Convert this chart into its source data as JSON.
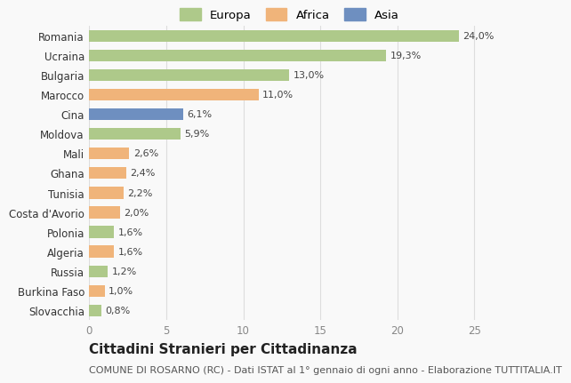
{
  "categories": [
    "Romania",
    "Ucraina",
    "Bulgaria",
    "Marocco",
    "Cina",
    "Moldova",
    "Mali",
    "Ghana",
    "Tunisia",
    "Costa d'Avorio",
    "Polonia",
    "Algeria",
    "Russia",
    "Burkina Faso",
    "Slovacchia"
  ],
  "values": [
    24.0,
    19.3,
    13.0,
    11.0,
    6.1,
    5.9,
    2.6,
    2.4,
    2.2,
    2.0,
    1.6,
    1.6,
    1.2,
    1.0,
    0.8
  ],
  "labels": [
    "24,0%",
    "19,3%",
    "13,0%",
    "11,0%",
    "6,1%",
    "5,9%",
    "2,6%",
    "2,4%",
    "2,2%",
    "2,0%",
    "1,6%",
    "1,6%",
    "1,2%",
    "1,0%",
    "0,8%"
  ],
  "continents": [
    "Europa",
    "Europa",
    "Europa",
    "Africa",
    "Asia",
    "Europa",
    "Africa",
    "Africa",
    "Africa",
    "Africa",
    "Europa",
    "Africa",
    "Europa",
    "Africa",
    "Europa"
  ],
  "colors": {
    "Europa": "#aec98a",
    "Africa": "#f0b47a",
    "Asia": "#6e8fc0"
  },
  "xlim": [
    0,
    26
  ],
  "title": "Cittadini Stranieri per Cittadinanza",
  "subtitle": "COMUNE DI ROSARNO (RC) - Dati ISTAT al 1° gennaio di ogni anno - Elaborazione TUTTITALIA.IT",
  "background_color": "#f9f9f9",
  "grid_color": "#dddddd",
  "bar_height": 0.6,
  "title_fontsize": 11,
  "subtitle_fontsize": 8,
  "tick_fontsize": 8.5,
  "label_fontsize": 8
}
